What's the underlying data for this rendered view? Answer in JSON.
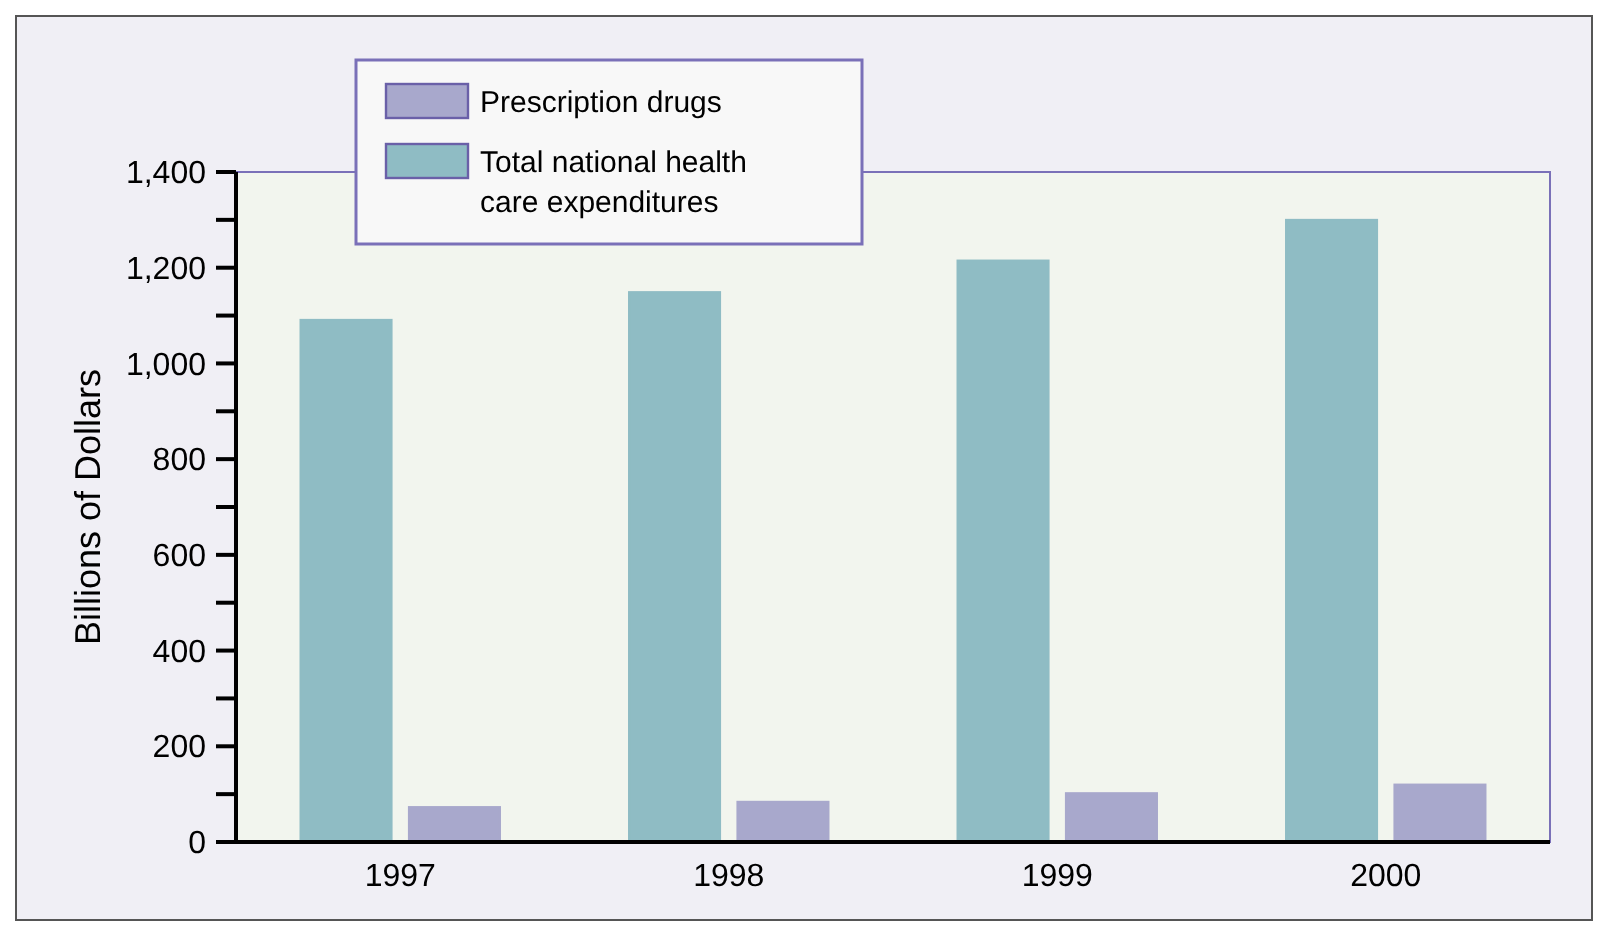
{
  "chart_data": {
    "type": "bar",
    "ylabel": "Billions of Dollars",
    "categories": [
      "1997",
      "1998",
      "1999",
      "2000"
    ],
    "series": [
      {
        "name": "Prescription drugs",
        "color": "#a8a8cc",
        "values": [
          73,
          84,
          102,
          120
        ]
      },
      {
        "name": "Total national health care expenditures",
        "color": "#8fbcc4",
        "values": [
          1091,
          1149,
          1215,
          1300
        ]
      }
    ],
    "ylim": [
      0,
      1400
    ],
    "yticks": [
      0,
      {
        "value": 100,
        "label": null
      },
      200,
      {
        "value": 300,
        "label": null
      },
      400,
      {
        "value": 500,
        "label": null
      },
      600,
      {
        "value": 700,
        "label": null
      },
      800,
      {
        "value": 900,
        "label": null
      },
      {
        "value": 1000,
        "label": "1,000"
      },
      {
        "value": 1100,
        "label": null
      },
      {
        "value": 1200,
        "label": "1,200"
      },
      {
        "value": 1300,
        "label": null
      },
      {
        "value": 1400,
        "label": "1,400"
      }
    ],
    "legend": "top left",
    "grid": false
  }
}
